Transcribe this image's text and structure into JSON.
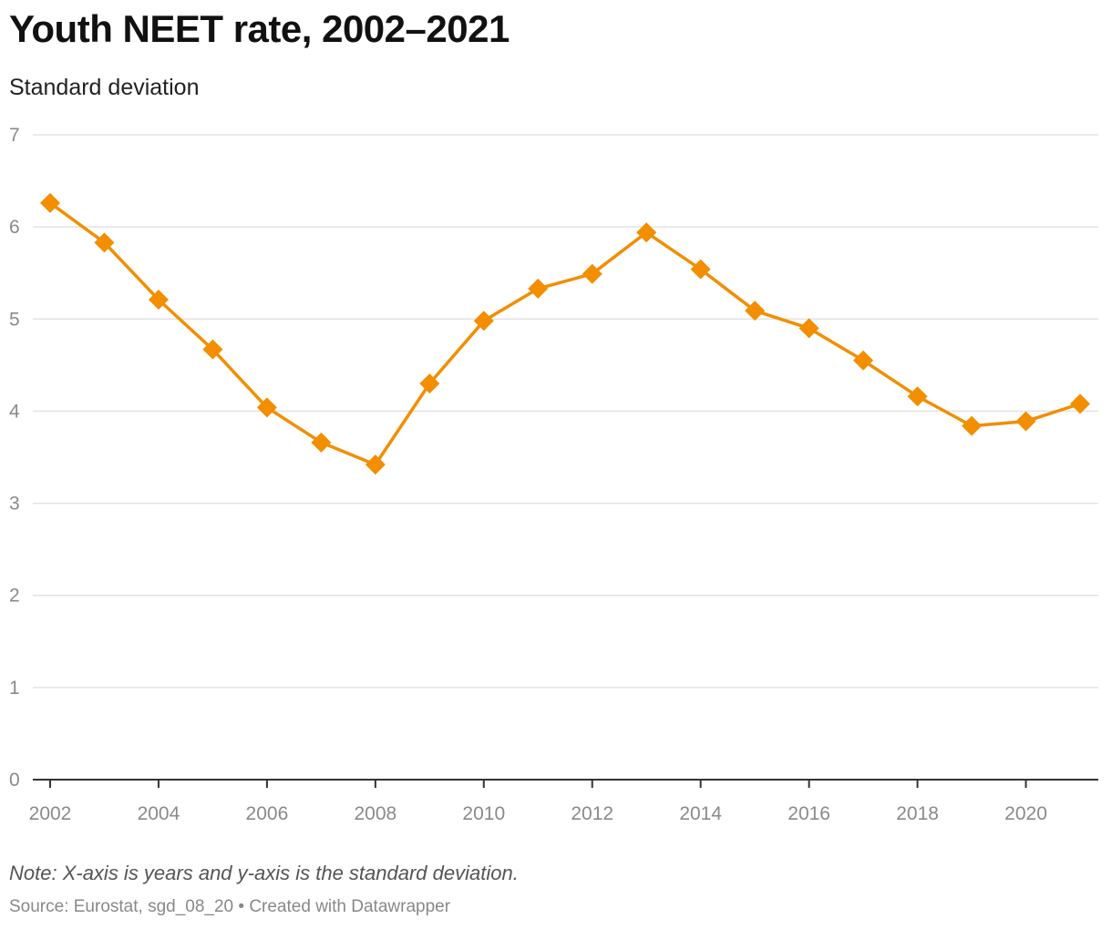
{
  "chart_data": {
    "type": "line",
    "title": "Youth NEET rate, 2002–2021",
    "subtitle": "Standard deviation",
    "xlabel": "",
    "ylabel": "",
    "x": [
      2002,
      2003,
      2004,
      2005,
      2006,
      2007,
      2008,
      2009,
      2010,
      2011,
      2012,
      2013,
      2014,
      2015,
      2016,
      2017,
      2018,
      2019,
      2020,
      2021
    ],
    "series": [
      {
        "values": [
          6.26,
          5.83,
          5.21,
          4.67,
          4.04,
          3.66,
          3.42,
          4.3,
          4.98,
          5.33,
          5.49,
          5.94,
          5.54,
          5.09,
          4.9,
          4.55,
          4.16,
          3.84,
          3.89,
          4.08
        ],
        "color": "#f28e00",
        "marker": "diamond"
      }
    ],
    "ylim": [
      0,
      7
    ],
    "xlim": [
      2002,
      2021
    ],
    "yticks": [
      "0",
      "1",
      "2",
      "3",
      "4",
      "5",
      "6",
      "7"
    ],
    "xticks": [
      "2002",
      "2004",
      "2006",
      "2008",
      "2010",
      "2012",
      "2014",
      "2016",
      "2018",
      "2020"
    ],
    "grid": "horizontal",
    "note": "Note: X-axis is years and y-axis is the standard deviation.",
    "source": "Source: Eurostat, sgd_08_20 • Created with Datawrapper"
  }
}
